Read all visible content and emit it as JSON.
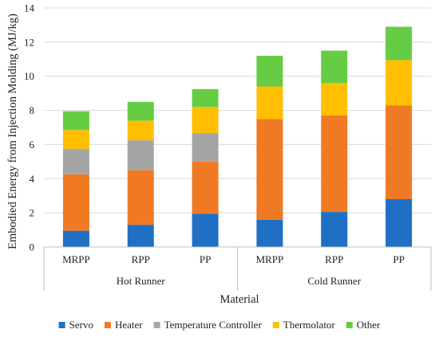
{
  "chart_data": {
    "type": "bar",
    "stacked": true,
    "ylabel": "Embodied Energy from Injection Molding (MJ/kg)",
    "xlabel": "Material",
    "ylim": [
      0,
      14
    ],
    "yticks": [
      0,
      2,
      4,
      6,
      8,
      10,
      12,
      14
    ],
    "grid": true,
    "legend_position": "bottom",
    "groups": [
      {
        "label": "Hot Runner",
        "categories": [
          "MRPP",
          "RPP",
          "PP"
        ]
      },
      {
        "label": "Cold Runner",
        "categories": [
          "MRPP",
          "RPP",
          "PP"
        ]
      }
    ],
    "categories": [
      "MRPP",
      "RPP",
      "PP",
      "MRPP",
      "RPP",
      "PP"
    ],
    "series": [
      {
        "name": "Servo",
        "color": "#1f6fc5",
        "values": [
          0.95,
          1.3,
          1.95,
          1.6,
          2.05,
          2.8
        ]
      },
      {
        "name": "Heater",
        "color": "#f07a23",
        "values": [
          3.3,
          3.2,
          3.05,
          5.9,
          5.65,
          5.5
        ]
      },
      {
        "name": "Temperature Controller",
        "color": "#a5a5a5",
        "values": [
          1.5,
          1.75,
          1.65,
          0,
          0,
          0
        ]
      },
      {
        "name": "Thermolator",
        "color": "#ffbf00",
        "values": [
          1.1,
          1.15,
          1.55,
          1.9,
          1.9,
          2.65
        ]
      },
      {
        "name": "Other",
        "color": "#66cc44",
        "values": [
          1.1,
          1.1,
          1.05,
          1.8,
          1.9,
          1.95
        ]
      }
    ]
  }
}
